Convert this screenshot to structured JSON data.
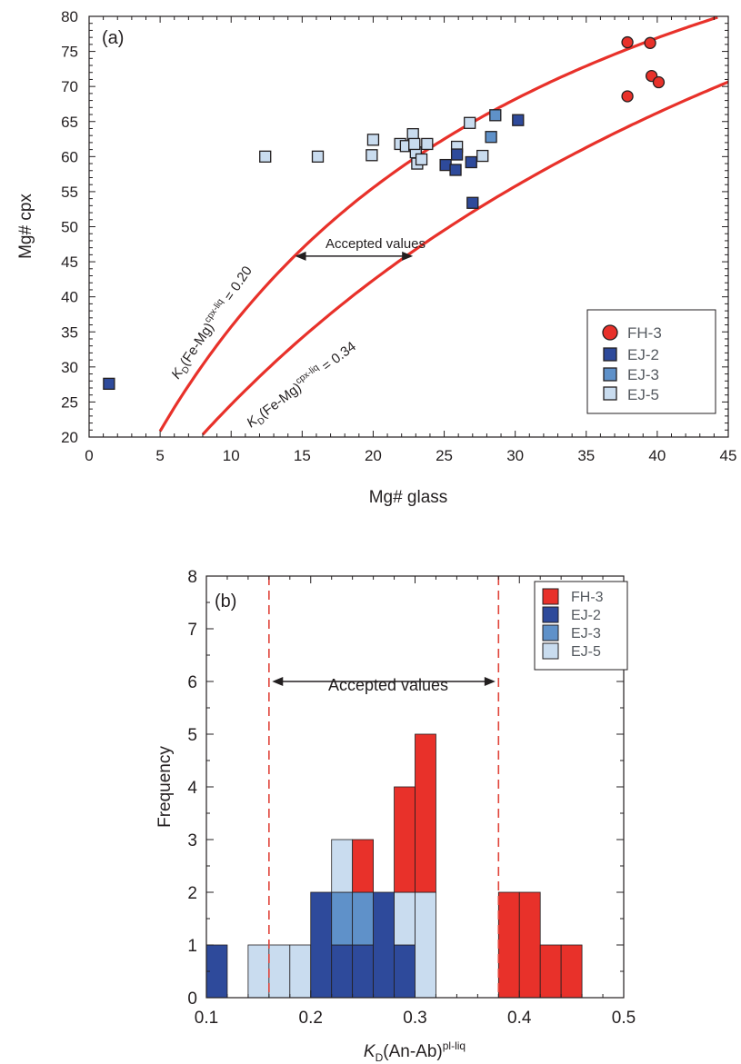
{
  "chart_data": [
    {
      "panel": "(a)",
      "type": "scatter",
      "xlabel": "Mg# glass",
      "ylabel": "Mg# cpx",
      "xlim": [
        0,
        45
      ],
      "ylim": [
        20,
        80
      ],
      "xticks": [
        0,
        5,
        10,
        15,
        20,
        25,
        30,
        35,
        40,
        45
      ],
      "yticks": [
        20,
        25,
        30,
        35,
        40,
        45,
        50,
        55,
        60,
        65,
        70,
        75,
        80
      ],
      "grid": false,
      "legend_position": "bottom-right",
      "series": [
        {
          "name": "FH-3",
          "marker": "circle",
          "color": "#e8312a",
          "x": [
            37.9,
            39.5,
            37.9,
            39.6,
            40.1
          ],
          "y": [
            76.3,
            76.2,
            68.6,
            71.5,
            70.6
          ]
        },
        {
          "name": "EJ-2",
          "marker": "square",
          "color": "#2e4a9b",
          "x": [
            1.4,
            25.1,
            25.8,
            25.9,
            26.9,
            27.0,
            30.2
          ],
          "y": [
            27.6,
            58.8,
            58.1,
            60.3,
            59.2,
            53.4,
            65.2
          ]
        },
        {
          "name": "EJ-3",
          "marker": "square",
          "color": "#5f91c9",
          "x": [
            28.3,
            28.6
          ],
          "y": [
            62.8,
            65.9
          ]
        },
        {
          "name": "EJ-5",
          "marker": "square",
          "color": "#c9dcef",
          "x": [
            12.4,
            16.1,
            19.9,
            20.0,
            21.9,
            22.3,
            22.8,
            22.9,
            23.0,
            22.9,
            23.1,
            23.4,
            23.8,
            25.9,
            26.8,
            27.7
          ],
          "y": [
            60.0,
            60.0,
            60.2,
            62.4,
            61.8,
            61.5,
            63.2,
            61.6,
            60.6,
            61.8,
            59.0,
            59.6,
            61.8,
            61.4,
            64.8,
            60.1
          ]
        }
      ],
      "curves": [
        {
          "label": "K_D(Fe-Mg)^cpx-liq = 0.20",
          "label_main": "(Fe-Mg)",
          "label_sup": "cpx-liq",
          "label_value": " = 0.20",
          "kd": 0.2,
          "color": "#e8312a"
        },
        {
          "label": "K_D(Fe-Mg)^cpx-liq = 0.34",
          "label_main": "(Fe-Mg)",
          "label_sup": "cpx-liq",
          "label_value": " = 0.34",
          "kd": 0.34,
          "color": "#e8312a"
        }
      ],
      "annotation": {
        "text": "Accepted values",
        "x_from": 14.5,
        "x_to": 22.8,
        "y": 45.8
      }
    },
    {
      "panel": "(b)",
      "type": "bar",
      "subtype": "stacked-histogram",
      "xlabel": "K_D(An-Ab)^pl-liq",
      "xlabel_main": "(An-Ab)",
      "xlabel_sup": "pl-liq",
      "ylabel": "Frequency",
      "xlim": [
        0.1,
        0.5
      ],
      "ylim": [
        0,
        8
      ],
      "xticks": [
        0.1,
        0.2,
        0.3,
        0.4,
        0.5
      ],
      "yticks": [
        0,
        1,
        2,
        3,
        4,
        5,
        6,
        7,
        8
      ],
      "bin_width": 0.02,
      "bins": [
        0.1,
        0.12,
        0.14,
        0.16,
        0.18,
        0.2,
        0.22,
        0.24,
        0.26,
        0.28,
        0.3,
        0.32,
        0.34,
        0.36,
        0.38,
        0.4,
        0.42,
        0.44
      ],
      "legend_position": "top-right",
      "series": [
        {
          "name": "EJ-2",
          "color": "#2e4a9b",
          "values": [
            1,
            0,
            0,
            0,
            0,
            2,
            1,
            1,
            2,
            1,
            0,
            0,
            0,
            0,
            0,
            0,
            0,
            0
          ]
        },
        {
          "name": "EJ-3",
          "color": "#5f91c9",
          "values": [
            0,
            0,
            0,
            0,
            0,
            0,
            1,
            1,
            0,
            0,
            0,
            0,
            0,
            0,
            0,
            0,
            0,
            0
          ]
        },
        {
          "name": "EJ-5",
          "color": "#c9dcef",
          "values": [
            0,
            0,
            1,
            1,
            1,
            0,
            1,
            0,
            0,
            1,
            2,
            0,
            0,
            0,
            0,
            0,
            0,
            0
          ]
        },
        {
          "name": "FH-3",
          "color": "#e8312a",
          "values": [
            0,
            0,
            0,
            0,
            0,
            0,
            0,
            1,
            0,
            2,
            3,
            0,
            0,
            0,
            2,
            2,
            1,
            1
          ]
        }
      ],
      "legend_order": [
        "FH-3",
        "EJ-2",
        "EJ-3",
        "EJ-5"
      ],
      "vlines": [
        0.16,
        0.38
      ],
      "annotation": {
        "text": "Accepted values",
        "x_from": 0.163,
        "x_to": 0.377,
        "y": 6
      }
    }
  ]
}
